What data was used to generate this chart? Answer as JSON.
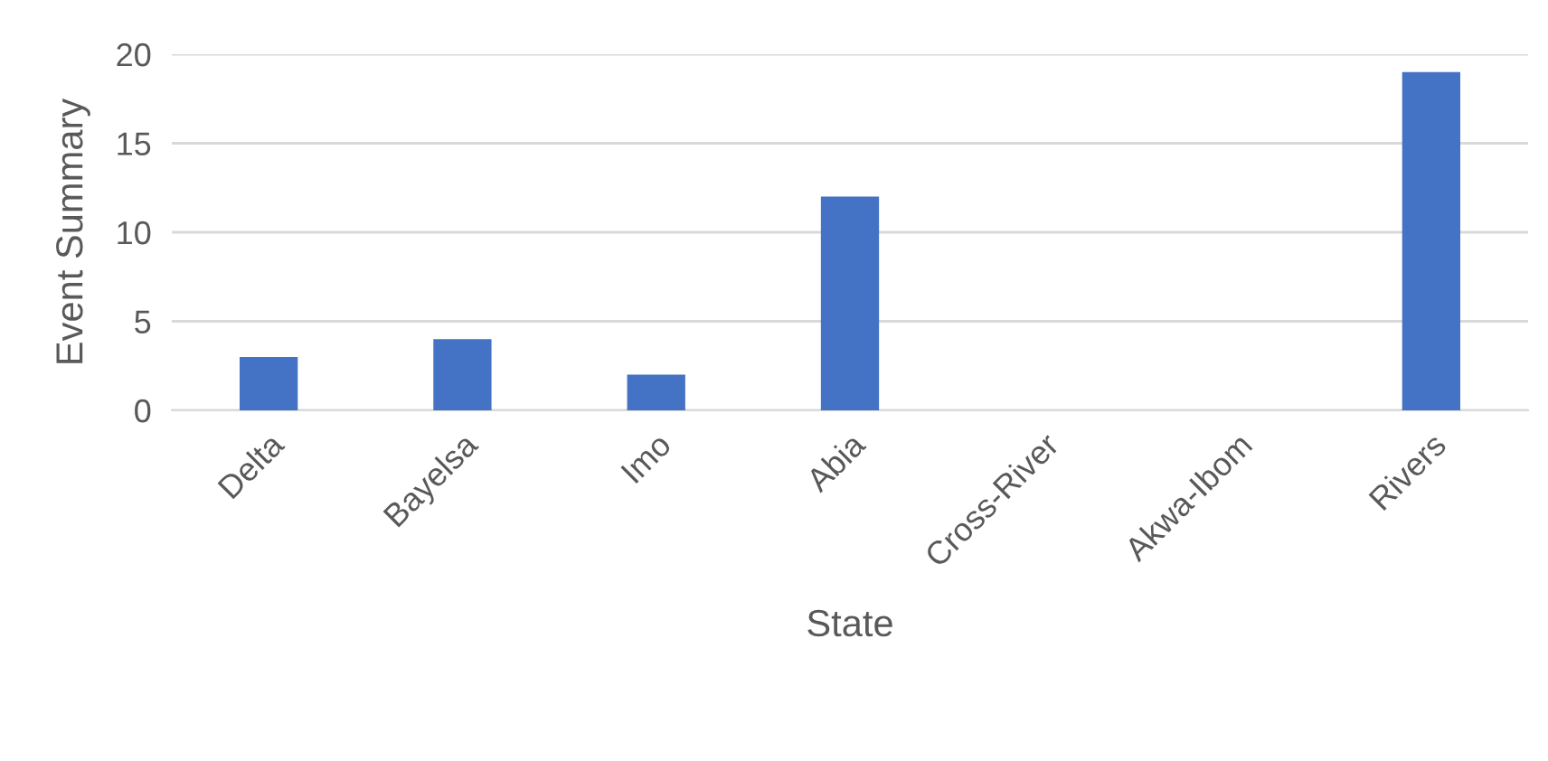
{
  "chart_data": {
    "type": "bar",
    "xlabel": "State",
    "ylabel": "Event Summary",
    "categories": [
      "Delta",
      "Bayelsa",
      "Imo",
      "Abia",
      "Cross-River",
      "Akwa-Ibom",
      "Rivers"
    ],
    "values": [
      3,
      4,
      2,
      12,
      0,
      0,
      19
    ],
    "color": "#4472c4",
    "ylim": [
      0,
      20
    ],
    "yticks": [
      0,
      5,
      10,
      15,
      20
    ],
    "grid": "y"
  }
}
